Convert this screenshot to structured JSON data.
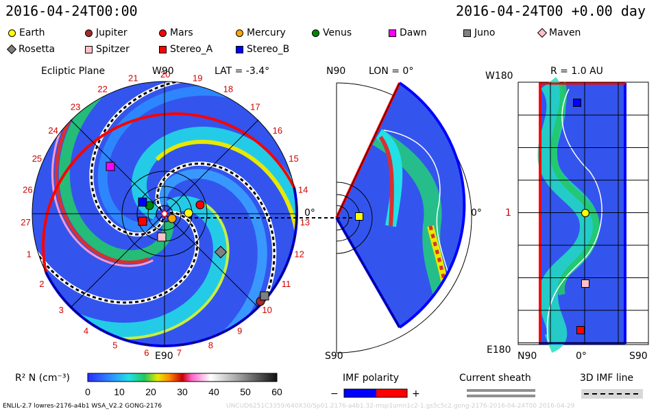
{
  "header": {
    "date_left": "2016-04-24T00:00",
    "date_right": "2016-04-24T00 +0.00 day"
  },
  "legend": [
    {
      "name": "Earth",
      "color": "#ffff00",
      "shape": "circle"
    },
    {
      "name": "Jupiter",
      "color": "#a52a2a",
      "shape": "circle"
    },
    {
      "name": "Mars",
      "color": "#ff0000",
      "shape": "circle"
    },
    {
      "name": "Mercury",
      "color": "#ffa500",
      "shape": "circle"
    },
    {
      "name": "Venus",
      "color": "#008800",
      "shape": "circle"
    },
    {
      "name": "Dawn",
      "color": "#ff00ff",
      "shape": "square"
    },
    {
      "name": "Juno",
      "color": "#808080",
      "shape": "square"
    },
    {
      "name": "Maven",
      "color": "#ffc0cb",
      "shape": "diamond"
    },
    {
      "name": "Rosetta",
      "color": "#808080",
      "shape": "diamond"
    },
    {
      "name": "Spitzer",
      "color": "#ffc0cb",
      "shape": "square"
    },
    {
      "name": "Stereo_A",
      "color": "#ff0000",
      "shape": "square"
    },
    {
      "name": "Stereo_B",
      "color": "#0000ff",
      "shape": "square"
    }
  ],
  "panels": {
    "ecliptic": {
      "title": "Ecliptic Plane",
      "top_label": "W90",
      "lat_label": "LAT = -3.4°",
      "bottom_label": "E90",
      "zero_label": "0°"
    },
    "meridional": {
      "top_label": "N90",
      "lon_label": "LON = 0°",
      "bottom_label": "S90",
      "zero_label": "0°"
    },
    "radial": {
      "r_label": "R = 1.0 AU",
      "top_left": "W180",
      "bottom_left": "E180",
      "mid_left": "1",
      "x_labels": [
        "N90",
        "0°",
        "S90"
      ]
    }
  },
  "carrington_labels": [
    "18",
    "19",
    "20",
    "21",
    "22",
    "23",
    "24",
    "25",
    "26",
    "27",
    "1",
    "2",
    "3",
    "4",
    "5",
    "6",
    "7",
    "8",
    "9",
    "10",
    "11",
    "12",
    "13",
    "14",
    "15",
    "16",
    "17"
  ],
  "colorbar": {
    "label": "R² N (cm⁻³)",
    "ticks": [
      "0",
      "10",
      "20",
      "30",
      "40",
      "50",
      "60"
    ],
    "range": [
      0,
      60
    ]
  },
  "imf": {
    "label": "IMF polarity",
    "minus": "−",
    "plus": "+",
    "neg_color": "#0000ff",
    "pos_color": "#ff0000"
  },
  "sheath": {
    "label": "Current sheath"
  },
  "imf3d": {
    "label": "3D IMF line"
  },
  "footer": {
    "left": "ENLIL-2.7 lowres-2176-a4b1 WSA_V2.2 GONG-2176",
    "right": "UNCUD6251C3359/640X30/Sp01.2176-a4b1.32-msp1umn1c2-1.gs5c5c2.gong-2176-2016-04-24T00    2016-04-29"
  },
  "chart_data": [
    {
      "type": "heatmap",
      "title": "Ecliptic Plane",
      "projection": "polar",
      "variable": "R² N (cm⁻³)",
      "value_range": [
        0,
        60
      ],
      "angle_top": "W90",
      "angle_bottom": "E90",
      "angle_right": "0°",
      "latitude_deg": -3.4,
      "markers": [
        {
          "name": "Earth",
          "color": "#ffff00",
          "shape": "circle"
        },
        {
          "name": "Mars",
          "color": "#ff0000",
          "shape": "circle"
        },
        {
          "name": "Mercury",
          "color": "#ffa500",
          "shape": "circle"
        },
        {
          "name": "Venus",
          "color": "#008800",
          "shape": "circle"
        },
        {
          "name": "Jupiter",
          "color": "#a52a2a",
          "shape": "circle"
        },
        {
          "name": "Dawn",
          "color": "#ff00ff",
          "shape": "square"
        },
        {
          "name": "Juno",
          "color": "#808080",
          "shape": "square"
        },
        {
          "name": "Rosetta",
          "color": "#808080",
          "shape": "diamond"
        },
        {
          "name": "Spitzer",
          "color": "#ffc0cb",
          "shape": "square"
        },
        {
          "name": "Stereo_A",
          "color": "#ff0000",
          "shape": "square"
        },
        {
          "name": "Stereo_B",
          "color": "#0000ff",
          "shape": "square"
        }
      ]
    },
    {
      "type": "heatmap",
      "title": "",
      "projection": "meridional wedge",
      "longitude_deg": 0,
      "angle_top": "N90",
      "angle_bottom": "S90",
      "angle_right": "0°",
      "markers": [
        {
          "name": "Earth",
          "color": "#ffff00",
          "shape": "square"
        }
      ]
    },
    {
      "type": "heatmap",
      "title": "",
      "projection": "lat-lon at fixed radius",
      "radius_au": 1.0,
      "xlabels": [
        "N90",
        "0°",
        "S90"
      ],
      "ylabels": [
        "W180",
        "1",
        "E180"
      ],
      "markers": [
        {
          "name": "Stereo_B",
          "color": "#0000ff",
          "shape": "square"
        },
        {
          "name": "Earth",
          "color": "#ffff00",
          "shape": "circle"
        },
        {
          "name": "Spitzer",
          "color": "#ffc0cb",
          "shape": "square"
        },
        {
          "name": "Stereo_A",
          "color": "#ff0000",
          "shape": "square"
        }
      ]
    }
  ]
}
